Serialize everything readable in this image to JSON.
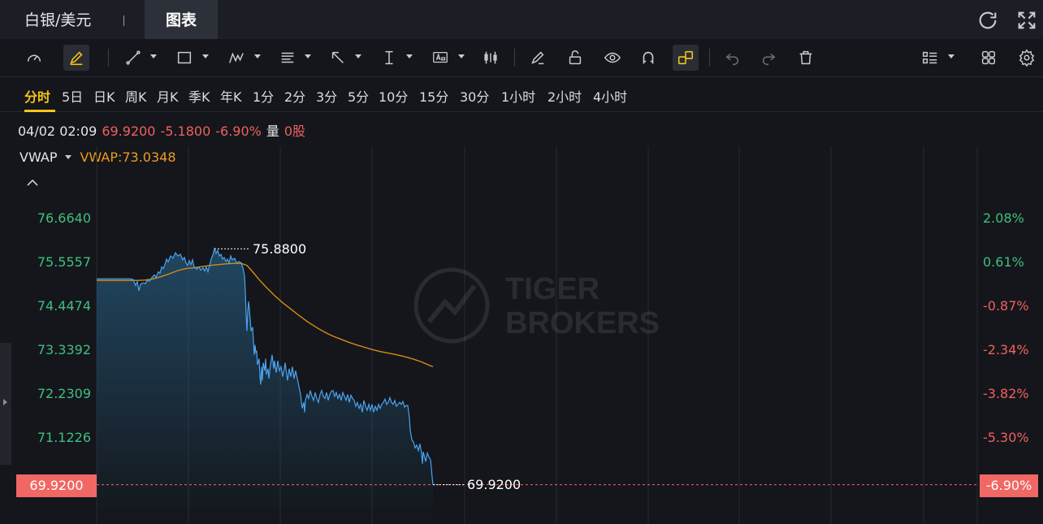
{
  "title_bar": {
    "instrument_tab": "白银/美元",
    "chart_tab": "图表"
  },
  "toolbar": {
    "tools": [
      "gauge-icon",
      "pencil-icon",
      "line-icon",
      "rectangle-icon",
      "pattern-icon",
      "fibonacci-icon",
      "arrow-icon",
      "measure-icon",
      "text-icon",
      "candle-icon",
      "eraser-icon",
      "unlock-icon",
      "eye-icon",
      "magnet-icon",
      "link-icon",
      "undo-icon",
      "redo-icon",
      "trash-icon",
      "layout-list-icon",
      "grid-icon",
      "settings-icon"
    ]
  },
  "periods": [
    "分时",
    "5日",
    "日K",
    "周K",
    "月K",
    "季K",
    "年K",
    "1分",
    "2分",
    "3分",
    "5分",
    "10分",
    "15分",
    "30分",
    "1小时",
    "2小时",
    "4小时"
  ],
  "active_period": "分时",
  "info": {
    "datetime": "04/02 02:09",
    "price": "69.9200",
    "change": "-5.1800",
    "change_pct": "-6.90%",
    "volume_label": "量",
    "volume": "0股"
  },
  "indicator": {
    "name": "VWAP",
    "value_text": "VWAP:73.0348"
  },
  "colors": {
    "price_line": "#4aa3f0",
    "vwap_line": "#d98a15",
    "positive": "#3fbf7f",
    "negative": "#f0605e",
    "last_tag": "#f06764"
  },
  "chart_data": {
    "type": "line",
    "y_ticks_left": [
      "76.6640",
      "75.5557",
      "74.4474",
      "73.3392",
      "72.2309",
      "71.1226"
    ],
    "y_ticks_right": [
      "2.08%",
      "0.61%",
      "-0.87%",
      "-2.34%",
      "-3.82%",
      "-5.30%"
    ],
    "ylim": [
      69.45,
      77.7
    ],
    "last_price_left": "69.9200",
    "last_price_right": "-6.90%",
    "high_annotation": "75.8800",
    "last_annotation": "69.9200",
    "watermark": [
      "TIGER",
      "BROKERS"
    ],
    "price_series": [
      [
        0,
        75.12
      ],
      [
        6,
        75.12
      ],
      [
        12,
        75.12
      ],
      [
        18,
        75.12
      ],
      [
        24,
        75.12
      ],
      [
        30,
        75.12
      ],
      [
        36,
        75.12
      ],
      [
        42,
        75.12
      ],
      [
        45,
        75.1
      ],
      [
        48,
        74.95
      ],
      [
        50,
        75.05
      ],
      [
        52,
        74.82
      ],
      [
        54,
        74.98
      ],
      [
        57,
        75.02
      ],
      [
        60,
        75.0
      ],
      [
        62,
        75.08
      ],
      [
        65,
        75.06
      ],
      [
        68,
        75.15
      ],
      [
        71,
        75.22
      ],
      [
        73,
        75.16
      ],
      [
        76,
        75.3
      ],
      [
        78,
        75.26
      ],
      [
        80,
        75.42
      ],
      [
        82,
        75.38
      ],
      [
        84,
        75.48
      ],
      [
        86,
        75.62
      ],
      [
        88,
        75.55
      ],
      [
        91,
        75.7
      ],
      [
        94,
        75.64
      ],
      [
        97,
        75.78
      ],
      [
        100,
        75.7
      ],
      [
        103,
        75.74
      ],
      [
        106,
        75.6
      ],
      [
        108,
        75.66
      ],
      [
        110,
        75.52
      ],
      [
        112,
        75.46
      ],
      [
        114,
        75.58
      ],
      [
        116,
        75.48
      ],
      [
        118,
        75.6
      ],
      [
        120,
        75.42
      ],
      [
        123,
        75.36
      ],
      [
        126,
        75.42
      ],
      [
        128,
        75.34
      ],
      [
        131,
        75.4
      ],
      [
        133,
        75.32
      ],
      [
        135,
        75.42
      ],
      [
        137,
        75.3
      ],
      [
        139,
        75.46
      ],
      [
        141,
        75.62
      ],
      [
        143,
        75.72
      ],
      [
        145,
        75.88
      ],
      [
        147,
        75.76
      ],
      [
        149,
        75.84
      ],
      [
        151,
        75.7
      ],
      [
        153,
        75.74
      ],
      [
        155,
        75.62
      ],
      [
        157,
        75.66
      ],
      [
        159,
        75.56
      ],
      [
        161,
        75.62
      ],
      [
        163,
        75.52
      ],
      [
        165,
        75.7
      ],
      [
        167,
        75.6
      ],
      [
        170,
        75.64
      ],
      [
        172,
        75.52
      ],
      [
        175,
        75.56
      ],
      [
        178,
        75.52
      ],
      [
        180,
        75.4
      ],
      [
        182,
        75.2
      ],
      [
        183,
        74.8
      ],
      [
        184,
        74.2
      ],
      [
        185,
        73.8
      ],
      [
        186,
        74.3
      ],
      [
        187,
        74.55
      ],
      [
        188,
        74.35
      ],
      [
        189,
        74.1
      ],
      [
        190,
        73.8
      ],
      [
        192,
        73.9
      ],
      [
        193,
        73.55
      ],
      [
        194,
        73.2
      ],
      [
        195,
        73.45
      ],
      [
        196,
        73.25
      ],
      [
        197,
        73.3
      ],
      [
        198,
        72.95
      ],
      [
        200,
        73.1
      ],
      [
        201,
        72.65
      ],
      [
        202,
        72.45
      ],
      [
        203,
        72.9
      ],
      [
        204,
        72.55
      ],
      [
        205,
        73.0
      ],
      [
        207,
        72.8
      ],
      [
        208,
        73.1
      ],
      [
        209,
        72.7
      ],
      [
        211,
        72.85
      ],
      [
        212,
        72.6
      ],
      [
        214,
        72.95
      ],
      [
        216,
        73.2
      ],
      [
        218,
        72.85
      ],
      [
        219,
        73.05
      ],
      [
        221,
        72.75
      ],
      [
        223,
        73.05
      ],
      [
        225,
        72.8
      ],
      [
        227,
        72.9
      ],
      [
        229,
        72.65
      ],
      [
        231,
        72.85
      ],
      [
        232,
        73.0
      ],
      [
        234,
        72.7
      ],
      [
        235,
        72.55
      ],
      [
        237,
        72.85
      ],
      [
        239,
        72.65
      ],
      [
        241,
        72.9
      ],
      [
        243,
        72.6
      ],
      [
        245,
        72.8
      ],
      [
        247,
        72.6
      ],
      [
        249,
        72.4
      ],
      [
        251,
        72.2
      ],
      [
        253,
        71.85
      ],
      [
        255,
        72.0
      ],
      [
        256,
        71.75
      ],
      [
        257,
        72.05
      ],
      [
        259,
        72.2
      ],
      [
        261,
        72.1
      ],
      [
        263,
        72.3
      ],
      [
        265,
        72.15
      ],
      [
        267,
        72.05
      ],
      [
        269,
        72.25
      ],
      [
        271,
        72.1
      ],
      [
        273,
        72.0
      ],
      [
        275,
        72.2
      ],
      [
        277,
        72.3
      ],
      [
        279,
        72.15
      ],
      [
        281,
        72.1
      ],
      [
        283,
        72.25
      ],
      [
        285,
        72.05
      ],
      [
        287,
        72.2
      ],
      [
        289,
        72.28
      ],
      [
        291,
        72.3
      ],
      [
        293,
        72.15
      ],
      [
        295,
        72.25
      ],
      [
        297,
        72.1
      ],
      [
        299,
        72.2
      ],
      [
        301,
        72.05
      ],
      [
        303,
        72.25
      ],
      [
        305,
        72.15
      ],
      [
        307,
        72.05
      ],
      [
        309,
        72.2
      ],
      [
        311,
        72.0
      ],
      [
        313,
        72.18
      ],
      [
        315,
        72.1
      ],
      [
        317,
        72.05
      ],
      [
        319,
        71.9
      ],
      [
        321,
        72.0
      ],
      [
        323,
        71.85
      ],
      [
        325,
        71.95
      ],
      [
        327,
        71.75
      ],
      [
        329,
        72.05
      ],
      [
        331,
        71.9
      ],
      [
        333,
        71.8
      ],
      [
        335,
        71.95
      ],
      [
        337,
        71.8
      ],
      [
        339,
        71.95
      ],
      [
        341,
        71.75
      ],
      [
        343,
        71.9
      ],
      [
        345,
        71.8
      ],
      [
        347,
        71.95
      ],
      [
        349,
        71.85
      ],
      [
        351,
        71.95
      ],
      [
        353,
        72.0
      ],
      [
        355,
        72.08
      ],
      [
        357,
        71.95
      ],
      [
        359,
        72.0
      ],
      [
        361,
        72.12
      ],
      [
        363,
        72.0
      ],
      [
        365,
        71.95
      ],
      [
        367,
        72.05
      ],
      [
        369,
        71.9
      ],
      [
        371,
        71.95
      ],
      [
        373,
        72.0
      ],
      [
        375,
        71.95
      ],
      [
        377,
        72.02
      ],
      [
        379,
        71.88
      ],
      [
        381,
        71.92
      ],
      [
        383,
        71.92
      ],
      [
        385,
        71.6
      ],
      [
        386,
        71.3
      ],
      [
        388,
        71.05
      ],
      [
        390,
        71.0
      ],
      [
        392,
        70.85
      ],
      [
        394,
        70.92
      ],
      [
        396,
        70.78
      ],
      [
        398,
        70.95
      ],
      [
        400,
        70.7
      ],
      [
        401,
        70.45
      ],
      [
        402,
        70.75
      ],
      [
        404,
        70.6
      ],
      [
        405,
        70.5
      ],
      [
        407,
        70.72
      ],
      [
        409,
        70.62
      ],
      [
        411,
        70.55
      ],
      [
        412,
        70.35
      ],
      [
        413,
        70.1
      ],
      [
        414,
        69.92
      ]
    ],
    "vwap_series": [
      [
        0,
        75.08
      ],
      [
        20,
        75.08
      ],
      [
        40,
        75.08
      ],
      [
        52,
        75.08
      ],
      [
        60,
        75.09
      ],
      [
        70,
        75.12
      ],
      [
        80,
        75.18
      ],
      [
        90,
        75.25
      ],
      [
        100,
        75.33
      ],
      [
        110,
        75.38
      ],
      [
        120,
        75.4
      ],
      [
        130,
        75.43
      ],
      [
        140,
        75.46
      ],
      [
        150,
        75.48
      ],
      [
        160,
        75.5
      ],
      [
        170,
        75.51
      ],
      [
        178,
        75.51
      ],
      [
        185,
        75.46
      ],
      [
        192,
        75.3
      ],
      [
        200,
        75.1
      ],
      [
        210,
        74.88
      ],
      [
        220,
        74.68
      ],
      [
        230,
        74.5
      ],
      [
        240,
        74.34
      ],
      [
        250,
        74.18
      ],
      [
        260,
        74.03
      ],
      [
        270,
        73.9
      ],
      [
        280,
        73.78
      ],
      [
        290,
        73.68
      ],
      [
        300,
        73.6
      ],
      [
        310,
        73.52
      ],
      [
        320,
        73.45
      ],
      [
        330,
        73.39
      ],
      [
        340,
        73.33
      ],
      [
        350,
        73.28
      ],
      [
        360,
        73.24
      ],
      [
        370,
        73.2
      ],
      [
        380,
        73.15
      ],
      [
        390,
        73.09
      ],
      [
        400,
        73.02
      ],
      [
        410,
        72.93
      ],
      [
        414,
        72.9
      ]
    ]
  }
}
